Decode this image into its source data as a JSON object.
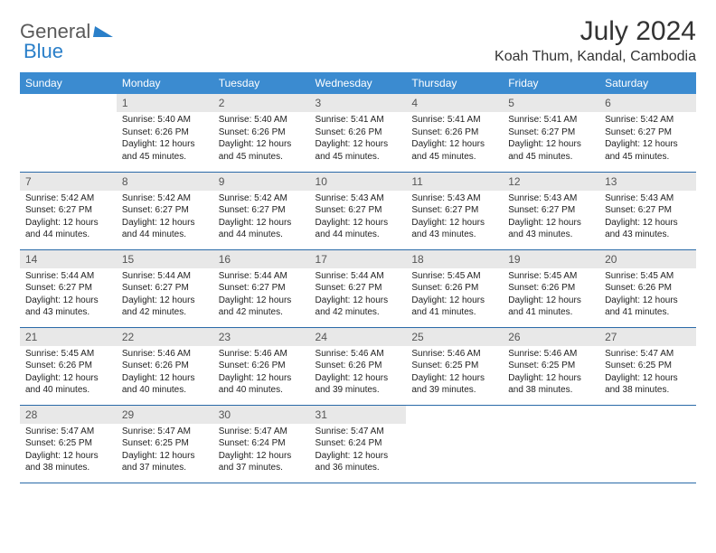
{
  "logo": {
    "part1": "General",
    "part2": "Blue"
  },
  "title": "July 2024",
  "location": "Koah Thum, Kandal, Cambodia",
  "header_bg": "#3b8bd0",
  "header_text_color": "#ffffff",
  "daynum_bg": "#e8e8e8",
  "border_color": "#2a6aa8",
  "weekdays": [
    "Sunday",
    "Monday",
    "Tuesday",
    "Wednesday",
    "Thursday",
    "Friday",
    "Saturday"
  ],
  "weeks": [
    [
      null,
      {
        "day": "1",
        "sunrise": "5:40 AM",
        "sunset": "6:26 PM",
        "daylight": "12 hours and 45 minutes."
      },
      {
        "day": "2",
        "sunrise": "5:40 AM",
        "sunset": "6:26 PM",
        "daylight": "12 hours and 45 minutes."
      },
      {
        "day": "3",
        "sunrise": "5:41 AM",
        "sunset": "6:26 PM",
        "daylight": "12 hours and 45 minutes."
      },
      {
        "day": "4",
        "sunrise": "5:41 AM",
        "sunset": "6:26 PM",
        "daylight": "12 hours and 45 minutes."
      },
      {
        "day": "5",
        "sunrise": "5:41 AM",
        "sunset": "6:27 PM",
        "daylight": "12 hours and 45 minutes."
      },
      {
        "day": "6",
        "sunrise": "5:42 AM",
        "sunset": "6:27 PM",
        "daylight": "12 hours and 45 minutes."
      }
    ],
    [
      {
        "day": "7",
        "sunrise": "5:42 AM",
        "sunset": "6:27 PM",
        "daylight": "12 hours and 44 minutes."
      },
      {
        "day": "8",
        "sunrise": "5:42 AM",
        "sunset": "6:27 PM",
        "daylight": "12 hours and 44 minutes."
      },
      {
        "day": "9",
        "sunrise": "5:42 AM",
        "sunset": "6:27 PM",
        "daylight": "12 hours and 44 minutes."
      },
      {
        "day": "10",
        "sunrise": "5:43 AM",
        "sunset": "6:27 PM",
        "daylight": "12 hours and 44 minutes."
      },
      {
        "day": "11",
        "sunrise": "5:43 AM",
        "sunset": "6:27 PM",
        "daylight": "12 hours and 43 minutes."
      },
      {
        "day": "12",
        "sunrise": "5:43 AM",
        "sunset": "6:27 PM",
        "daylight": "12 hours and 43 minutes."
      },
      {
        "day": "13",
        "sunrise": "5:43 AM",
        "sunset": "6:27 PM",
        "daylight": "12 hours and 43 minutes."
      }
    ],
    [
      {
        "day": "14",
        "sunrise": "5:44 AM",
        "sunset": "6:27 PM",
        "daylight": "12 hours and 43 minutes."
      },
      {
        "day": "15",
        "sunrise": "5:44 AM",
        "sunset": "6:27 PM",
        "daylight": "12 hours and 42 minutes."
      },
      {
        "day": "16",
        "sunrise": "5:44 AM",
        "sunset": "6:27 PM",
        "daylight": "12 hours and 42 minutes."
      },
      {
        "day": "17",
        "sunrise": "5:44 AM",
        "sunset": "6:27 PM",
        "daylight": "12 hours and 42 minutes."
      },
      {
        "day": "18",
        "sunrise": "5:45 AM",
        "sunset": "6:26 PM",
        "daylight": "12 hours and 41 minutes."
      },
      {
        "day": "19",
        "sunrise": "5:45 AM",
        "sunset": "6:26 PM",
        "daylight": "12 hours and 41 minutes."
      },
      {
        "day": "20",
        "sunrise": "5:45 AM",
        "sunset": "6:26 PM",
        "daylight": "12 hours and 41 minutes."
      }
    ],
    [
      {
        "day": "21",
        "sunrise": "5:45 AM",
        "sunset": "6:26 PM",
        "daylight": "12 hours and 40 minutes."
      },
      {
        "day": "22",
        "sunrise": "5:46 AM",
        "sunset": "6:26 PM",
        "daylight": "12 hours and 40 minutes."
      },
      {
        "day": "23",
        "sunrise": "5:46 AM",
        "sunset": "6:26 PM",
        "daylight": "12 hours and 40 minutes."
      },
      {
        "day": "24",
        "sunrise": "5:46 AM",
        "sunset": "6:26 PM",
        "daylight": "12 hours and 39 minutes."
      },
      {
        "day": "25",
        "sunrise": "5:46 AM",
        "sunset": "6:25 PM",
        "daylight": "12 hours and 39 minutes."
      },
      {
        "day": "26",
        "sunrise": "5:46 AM",
        "sunset": "6:25 PM",
        "daylight": "12 hours and 38 minutes."
      },
      {
        "day": "27",
        "sunrise": "5:47 AM",
        "sunset": "6:25 PM",
        "daylight": "12 hours and 38 minutes."
      }
    ],
    [
      {
        "day": "28",
        "sunrise": "5:47 AM",
        "sunset": "6:25 PM",
        "daylight": "12 hours and 38 minutes."
      },
      {
        "day": "29",
        "sunrise": "5:47 AM",
        "sunset": "6:25 PM",
        "daylight": "12 hours and 37 minutes."
      },
      {
        "day": "30",
        "sunrise": "5:47 AM",
        "sunset": "6:24 PM",
        "daylight": "12 hours and 37 minutes."
      },
      {
        "day": "31",
        "sunrise": "5:47 AM",
        "sunset": "6:24 PM",
        "daylight": "12 hours and 36 minutes."
      },
      null,
      null,
      null
    ]
  ],
  "labels": {
    "sunrise": "Sunrise:",
    "sunset": "Sunset:",
    "daylight": "Daylight:"
  }
}
